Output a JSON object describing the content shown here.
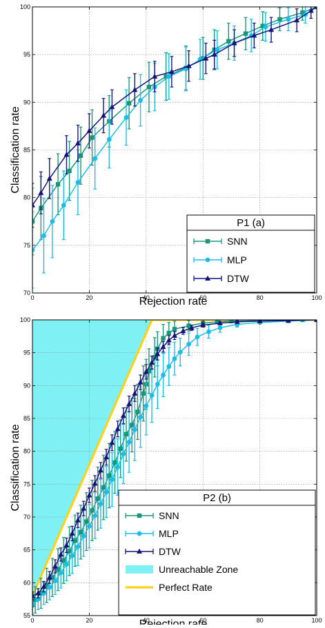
{
  "colors": {
    "SNN": "#17967a",
    "MLP": "#1cbce6",
    "DTW": "#141478",
    "zone_fill": "#7ff0f4",
    "perfect": "#ffd11a",
    "grid": "#8a8a8a"
  },
  "chart_data": [
    {
      "type": "line",
      "legend_title": "P1 (a)",
      "xlabel": "Rejection rate",
      "ylabel": "Classification rate",
      "xlim": [
        0,
        100
      ],
      "ylim": [
        70,
        100
      ],
      "xticks": [
        0,
        20,
        40,
        60,
        80,
        100
      ],
      "yticks": [
        70,
        75,
        80,
        85,
        90,
        95,
        100
      ],
      "grid": true,
      "legend_position": "lower-right",
      "series": [
        {
          "name": "SNN",
          "marker": "square",
          "x": [
            0,
            3,
            9,
            13,
            17,
            21,
            27,
            34,
            41,
            47,
            54,
            60,
            64,
            69,
            75,
            81,
            87,
            95,
            100
          ],
          "y": [
            77.5,
            78.9,
            81.4,
            82.8,
            84.4,
            86.3,
            88.0,
            89.9,
            91.6,
            92.7,
            93.6,
            94.6,
            95.5,
            96.4,
            97.2,
            98.0,
            98.7,
            99.4,
            100
          ],
          "err": [
            3.5,
            3.3,
            3.2,
            3.1,
            3.0,
            2.9,
            2.7,
            2.7,
            2.6,
            2.5,
            2.3,
            2.2,
            2.1,
            1.9,
            1.7,
            1.5,
            1.2,
            0.8,
            0
          ]
        },
        {
          "name": "MLP",
          "marker": "circle",
          "x": [
            0,
            4,
            7,
            11,
            16,
            22,
            27,
            33,
            38,
            43,
            48,
            54,
            59,
            65,
            71,
            77,
            82,
            90,
            96,
            100
          ],
          "y": [
            74.5,
            76.0,
            77.5,
            79.2,
            81.6,
            84.1,
            86.1,
            88.4,
            90.2,
            91.6,
            92.7,
            93.5,
            94.5,
            95.5,
            96.2,
            97.0,
            97.9,
            98.7,
            99.2,
            100
          ],
          "err": [
            4.0,
            3.9,
            3.8,
            3.6,
            3.4,
            3.2,
            3.0,
            2.9,
            2.7,
            2.5,
            2.4,
            2.3,
            2.1,
            2.0,
            1.8,
            1.7,
            1.5,
            1.2,
            0.9,
            0
          ]
        },
        {
          "name": "DTW",
          "marker": "triangle",
          "x": [
            0,
            3,
            6,
            12,
            16,
            20,
            25,
            28,
            36,
            43,
            49,
            55,
            61,
            64,
            71,
            78,
            84,
            93,
            98,
            100
          ],
          "y": [
            79.2,
            80.5,
            82.0,
            84.5,
            85.7,
            87.0,
            88.6,
            89.5,
            91.3,
            92.7,
            93.2,
            93.8,
            94.6,
            95.0,
            96.2,
            97.0,
            97.6,
            98.6,
            99.6,
            100
          ],
          "err": [
            2.3,
            2.2,
            2.1,
            2.0,
            1.9,
            1.8,
            1.8,
            1.8,
            1.7,
            1.6,
            1.6,
            1.6,
            1.6,
            1.5,
            1.4,
            1.3,
            1.3,
            1.2,
            0.8,
            0
          ]
        }
      ]
    },
    {
      "type": "line",
      "legend_title": "P2 (b)",
      "xlabel": "Rejection rate",
      "ylabel": "Classification rate",
      "xlim": [
        0,
        100
      ],
      "ylim": [
        55,
        100
      ],
      "xticks": [
        0,
        20,
        40,
        60,
        80,
        100
      ],
      "yticks": [
        55,
        60,
        65,
        70,
        75,
        80,
        85,
        90,
        95,
        100
      ],
      "grid": true,
      "legend_position": "lower-right",
      "series": [
        {
          "name": "SNN",
          "marker": "square",
          "x": [
            0,
            1,
            3,
            5,
            7,
            9,
            11,
            13,
            15,
            17,
            19,
            21,
            23,
            25,
            27,
            29,
            31,
            33,
            35,
            37,
            39,
            40,
            41,
            43,
            44,
            46,
            48,
            50,
            55,
            60,
            65,
            70,
            80,
            90,
            95,
            100
          ],
          "y": [
            56.6,
            57.4,
            58.4,
            59.6,
            60.8,
            62.0,
            63.4,
            64.8,
            66.4,
            67.7,
            69.3,
            71.0,
            72.8,
            74.5,
            76.3,
            78.3,
            80.4,
            82.6,
            84.0,
            86.0,
            88.8,
            90.2,
            92.2,
            94.3,
            95.6,
            97.2,
            98.0,
            98.6,
            99.1,
            99.5,
            99.7,
            99.8,
            99.9,
            100,
            100,
            100
          ],
          "err": [
            1.8,
            2.0,
            2.3,
            2.6,
            2.9,
            3.2,
            3.5,
            3.7,
            3.9,
            4.1,
            4.4,
            4.6,
            4.8,
            4.9,
            4.9,
            4.7,
            4.4,
            4.1,
            4.1,
            4.2,
            4.2,
            3.8,
            3.4,
            3.0,
            2.6,
            2.1,
            1.6,
            1.2,
            0.8,
            0.5,
            0.3,
            0.2,
            0.1,
            0,
            0,
            0
          ]
        },
        {
          "name": "MLP",
          "marker": "circle",
          "x": [
            0,
            2,
            4,
            6,
            8,
            10,
            12,
            14,
            16,
            18,
            20,
            22,
            24,
            26,
            28,
            30,
            32,
            34,
            36,
            38,
            40,
            42,
            44,
            46,
            48,
            50,
            52,
            55,
            58,
            62,
            66,
            72,
            80,
            90,
            100
          ],
          "y": [
            56.7,
            57.5,
            58.4,
            59.3,
            60.3,
            61.5,
            62.8,
            64.1,
            65.5,
            67.1,
            68.6,
            70.2,
            72.0,
            73.8,
            75.7,
            77.6,
            79.6,
            81.4,
            83.3,
            85.2,
            86.9,
            88.5,
            90.2,
            91.6,
            92.9,
            94.1,
            95.1,
            96.3,
            97.4,
            98.2,
            98.8,
            99.3,
            99.6,
            99.8,
            100
          ],
          "err": [
            1.5,
            1.6,
            1.7,
            1.9,
            2.1,
            2.3,
            2.5,
            2.7,
            2.9,
            3.1,
            3.3,
            3.5,
            3.7,
            3.9,
            4.1,
            4.3,
            4.5,
            4.6,
            4.7,
            4.6,
            4.4,
            4.1,
            3.7,
            3.3,
            2.9,
            2.5,
            2.1,
            1.7,
            1.3,
            1.0,
            0.7,
            0.4,
            0.2,
            0.1,
            0
          ]
        },
        {
          "name": "DTW",
          "marker": "triangle",
          "x": [
            0,
            2,
            4,
            6,
            8,
            10,
            12,
            14,
            16,
            18,
            20,
            22,
            24,
            26,
            28,
            30,
            32,
            34,
            36,
            38,
            40,
            42,
            44,
            46,
            48,
            50,
            53,
            56,
            60,
            66,
            72,
            80,
            90,
            100
          ],
          "y": [
            58.0,
            58.4,
            59.4,
            60.8,
            62.5,
            64.3,
            65.7,
            67.5,
            69.5,
            71.3,
            73.3,
            75.1,
            77.1,
            79.1,
            81.3,
            83.4,
            85.4,
            87.2,
            88.8,
            90.5,
            92.1,
            93.5,
            94.8,
            95.9,
            96.9,
            97.6,
            98.3,
            98.8,
            99.2,
            99.5,
            99.7,
            99.8,
            99.9,
            100
          ],
          "err": [
            0.6,
            0.7,
            0.8,
            0.9,
            1.0,
            1.0,
            1.1,
            1.1,
            1.1,
            1.1,
            1.1,
            1.2,
            1.2,
            1.2,
            1.2,
            1.2,
            1.2,
            1.2,
            1.2,
            1.1,
            1.1,
            1.0,
            0.9,
            0.8,
            0.7,
            0.6,
            0.5,
            0.4,
            0.3,
            0.2,
            0.2,
            0.1,
            0.1,
            0
          ]
        }
      ],
      "extra_legend": [
        {
          "name": "Unreachable Zone",
          "kind": "area"
        },
        {
          "name": "Perfect Rate",
          "kind": "line"
        }
      ],
      "perfect_rate": {
        "x": [
          0,
          42,
          100
        ],
        "y": [
          58,
          100,
          100
        ]
      }
    }
  ]
}
